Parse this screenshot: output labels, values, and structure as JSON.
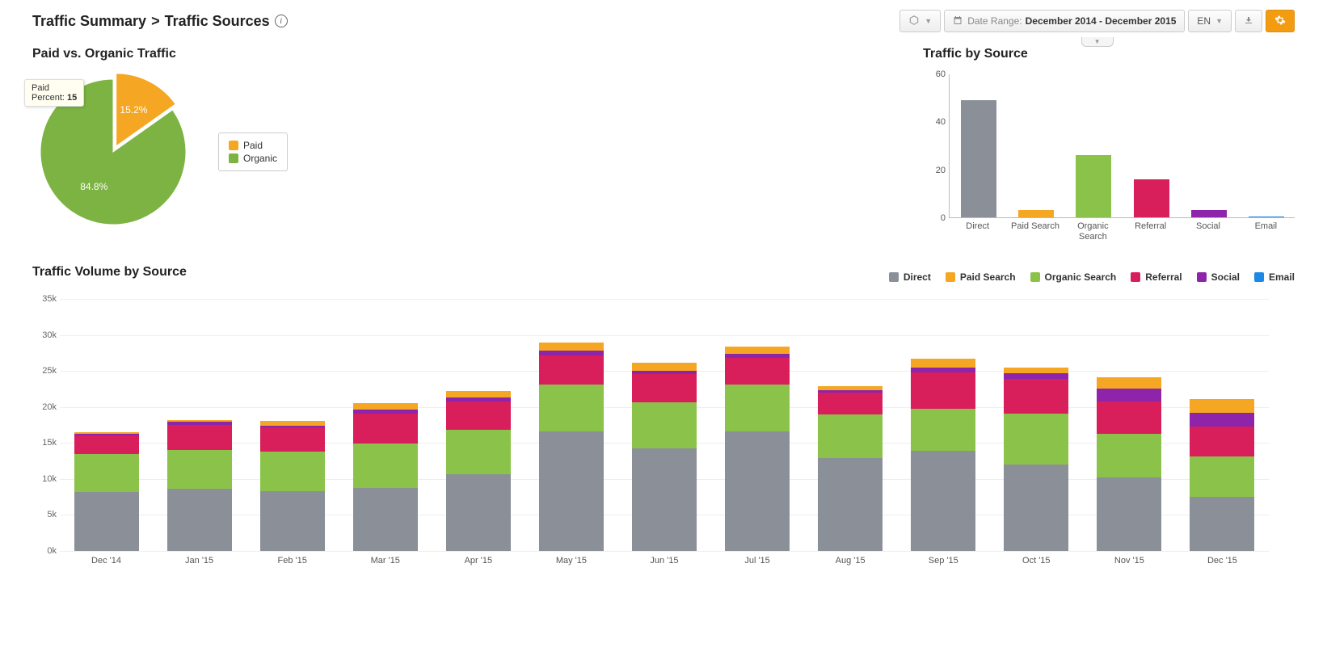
{
  "breadcrumb": {
    "root": "Traffic Summary",
    "sep": ">",
    "page": "Traffic Sources"
  },
  "toolbar": {
    "date_label": "Date Range:",
    "date_value": "December 2014 - December 2015",
    "lang": "EN"
  },
  "colors": {
    "paid": "#f5a623",
    "organic_pie": "#7cb342",
    "direct": "#8a8f98",
    "paid_search": "#f5a623",
    "organic_search": "#8bc34a",
    "referral": "#d81e5b",
    "social": "#8e24aa",
    "email": "#1e88e5",
    "grid": "#eeeeee",
    "axis": "#bbbbbb"
  },
  "pie": {
    "title": "Paid vs. Organic Traffic",
    "tooltip_title": "Paid",
    "tooltip_label": "Percent:",
    "tooltip_value": "15",
    "slices": [
      {
        "label": "Paid",
        "value": 15.2,
        "color": "#f5a623",
        "display": "15.2%"
      },
      {
        "label": "Organic",
        "value": 84.8,
        "color": "#7cb342",
        "display": "84.8%"
      }
    ],
    "legend": [
      {
        "label": "Paid",
        "color": "#f5a623"
      },
      {
        "label": "Organic",
        "color": "#7cb342"
      }
    ]
  },
  "small_bar": {
    "title": "Traffic by Source",
    "ymax": 60,
    "yticks": [
      0,
      20,
      40,
      60
    ],
    "bars": [
      {
        "label": "Direct",
        "value": 49,
        "color": "#8a8f98"
      },
      {
        "label": "Paid Search",
        "value": 3,
        "color": "#f5a623"
      },
      {
        "label": "Organic Search",
        "value": 26,
        "color": "#8bc34a"
      },
      {
        "label": "Referral",
        "value": 16,
        "color": "#d81e5b"
      },
      {
        "label": "Social",
        "value": 3,
        "color": "#8e24aa"
      },
      {
        "label": "Email",
        "value": 0.2,
        "color": "#1e88e5"
      }
    ]
  },
  "big_chart": {
    "title": "Traffic Volume by Source",
    "ymax": 35000,
    "yticks": [
      0,
      5000,
      10000,
      15000,
      20000,
      25000,
      30000,
      35000
    ],
    "ytick_labels": [
      "0k",
      "5k",
      "10k",
      "15k",
      "20k",
      "25k",
      "30k",
      "35k"
    ],
    "legend": [
      {
        "label": "Direct",
        "color": "#8a8f98"
      },
      {
        "label": "Paid Search",
        "color": "#f5a623"
      },
      {
        "label": "Organic Search",
        "color": "#8bc34a"
      },
      {
        "label": "Referral",
        "color": "#d81e5b"
      },
      {
        "label": "Social",
        "color": "#8e24aa"
      },
      {
        "label": "Email",
        "color": "#1e88e5"
      }
    ],
    "categories": [
      "Dec '14",
      "Jan '15",
      "Feb '15",
      "Mar '15",
      "Apr '15",
      "May '15",
      "Jun '15",
      "Jul '15",
      "Aug '15",
      "Sep '15",
      "Oct '15",
      "Nov '15",
      "Dec '15"
    ],
    "series_order": [
      "direct",
      "organic_search",
      "referral",
      "social",
      "paid_search",
      "email"
    ],
    "stacks": [
      {
        "direct": 8200,
        "organic_search": 5300,
        "referral": 2600,
        "social": 200,
        "paid_search": 200,
        "email": 0
      },
      {
        "direct": 8600,
        "organic_search": 5400,
        "referral": 3500,
        "social": 400,
        "paid_search": 300,
        "email": 0
      },
      {
        "direct": 8300,
        "organic_search": 5500,
        "referral": 3400,
        "social": 200,
        "paid_search": 700,
        "email": 0
      },
      {
        "direct": 8700,
        "organic_search": 6200,
        "referral": 4200,
        "social": 500,
        "paid_search": 900,
        "email": 0
      },
      {
        "direct": 10700,
        "organic_search": 6100,
        "referral": 4000,
        "social": 500,
        "paid_search": 900,
        "email": 0
      },
      {
        "direct": 16600,
        "organic_search": 6500,
        "referral": 4000,
        "social": 700,
        "paid_search": 1100,
        "email": 0
      },
      {
        "direct": 14200,
        "organic_search": 6400,
        "referral": 4000,
        "social": 400,
        "paid_search": 1100,
        "email": 0
      },
      {
        "direct": 16600,
        "organic_search": 6500,
        "referral": 3700,
        "social": 600,
        "paid_search": 1000,
        "email": 0
      },
      {
        "direct": 12900,
        "organic_search": 6100,
        "referral": 3000,
        "social": 300,
        "paid_search": 600,
        "email": 0
      },
      {
        "direct": 13900,
        "organic_search": 5900,
        "referral": 5000,
        "social": 700,
        "paid_search": 1200,
        "email": 0
      },
      {
        "direct": 12000,
        "organic_search": 7100,
        "referral": 4800,
        "social": 800,
        "paid_search": 800,
        "email": 0
      },
      {
        "direct": 10200,
        "organic_search": 6100,
        "referral": 4400,
        "social": 1800,
        "paid_search": 1600,
        "email": 0
      },
      {
        "direct": 7500,
        "organic_search": 5600,
        "referral": 4200,
        "social": 1900,
        "paid_search": 1900,
        "email": 0
      }
    ]
  }
}
